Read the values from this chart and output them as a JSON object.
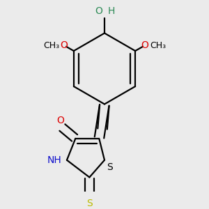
{
  "bg_color": "#ebebeb",
  "bond_color": "#000000",
  "n_color": "#1010cc",
  "o_color": "#dd0000",
  "s_color": "#bbbb00",
  "oh_color": "#2e8b57",
  "line_width": 1.6,
  "font_size": 10,
  "label_o": "O",
  "label_h": "H",
  "label_nh": "NH",
  "label_s": "S"
}
